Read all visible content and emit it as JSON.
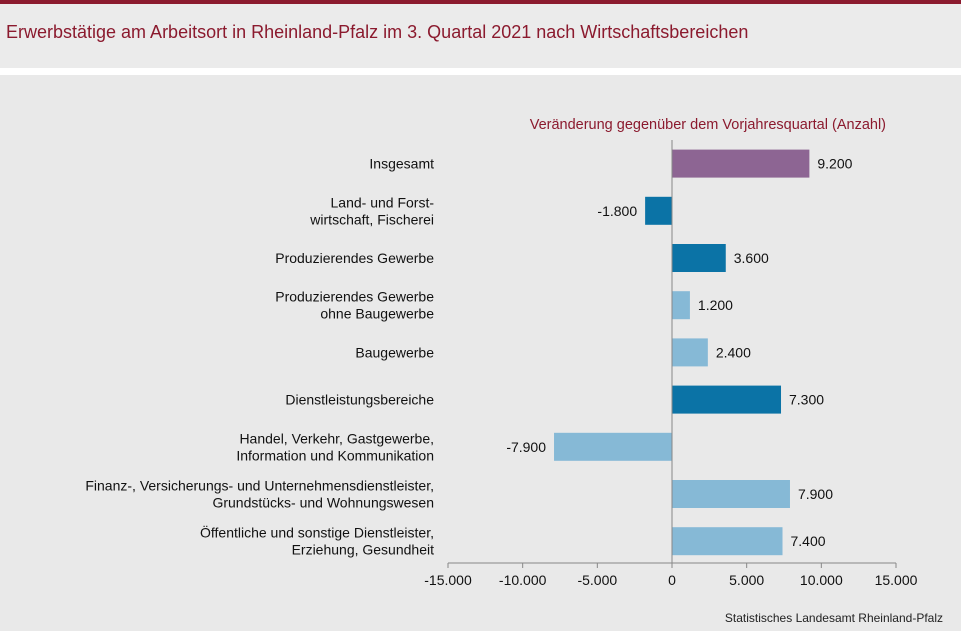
{
  "title": "Erwerbstätige am Arbeitsort in Rheinland-Pfalz im 3. Quartal 2021 nach Wirtschaftsbereichen",
  "source": "Statistisches Landesamt Rheinland-Pfalz",
  "chart_data": {
    "type": "bar",
    "orientation": "horizontal",
    "subtitle": "Veränderung gegenüber dem Vorjahresquartal (Anzahl)",
    "categories": [
      [
        "Insgesamt"
      ],
      [
        "Land- und Forst-",
        "wirtschaft, Fischerei"
      ],
      [
        "Produzierendes Gewerbe"
      ],
      [
        "Produzierendes Gewerbe",
        "ohne Baugewerbe"
      ],
      [
        "Baugewerbe"
      ],
      [
        "Dienstleistungsbereiche"
      ],
      [
        "Handel, Verkehr, Gastgewerbe,",
        "Information und Kommunikation"
      ],
      [
        "Finanz-, Versicherungs- und Unternehmensdienstleister,",
        "Grundstücks- und Wohnungswesen"
      ],
      [
        "Öffentliche und sonstige Dienstleister,",
        "Erziehung, Gesundheit"
      ]
    ],
    "values": [
      9200,
      -1800,
      3600,
      1200,
      2400,
      7300,
      -7900,
      7900,
      7400
    ],
    "value_labels": [
      "9.200",
      "-1.800",
      "3.600",
      "1.200",
      "2.400",
      "7.300",
      "-7.900",
      "7.900",
      "7.400"
    ],
    "bar_colors": [
      "#8d6593",
      "#0b73a6",
      "#0b73a6",
      "#86b9d6",
      "#86b9d6",
      "#0b73a6",
      "#86b9d6",
      "#86b9d6",
      "#86b9d6"
    ],
    "xlim": [
      -15000,
      15000
    ],
    "xticks": [
      -15000,
      -10000,
      -5000,
      0,
      5000,
      10000,
      15000
    ],
    "xtick_labels": [
      "-15.000",
      "-10.000",
      "-5.000",
      "0",
      "5.000",
      "10.000",
      "15.000"
    ],
    "xlabel": "",
    "ylabel": "",
    "grid": false
  }
}
